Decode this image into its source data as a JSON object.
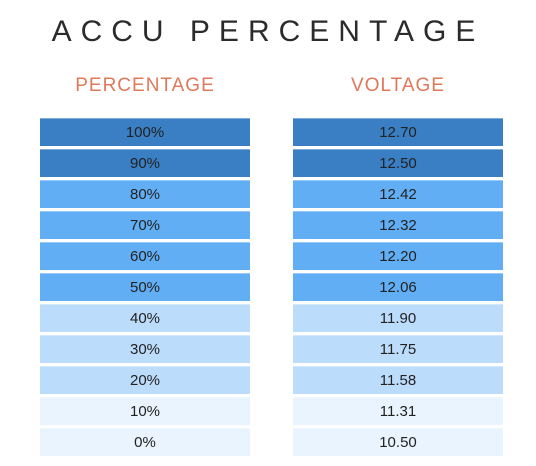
{
  "title": "ACCU PERCENTAGE",
  "colors": {
    "title": "#2b2b2b",
    "header": "#e0785a",
    "level_dark": "#3a7fc4",
    "level_medium": "#62aef4",
    "level_light": "#bcdcfb",
    "level_faint": "#e9f4fe"
  },
  "chart_data": {
    "type": "table",
    "title": "ACCU PERCENTAGE",
    "columns": [
      "PERCENTAGE",
      "VOLTAGE"
    ],
    "rows": [
      {
        "percentage": "100%",
        "voltage": "12.70",
        "shade": "dark"
      },
      {
        "percentage": "90%",
        "voltage": "12.50",
        "shade": "dark"
      },
      {
        "percentage": "80%",
        "voltage": "12.42",
        "shade": "medium"
      },
      {
        "percentage": "70%",
        "voltage": "12.32",
        "shade": "medium"
      },
      {
        "percentage": "60%",
        "voltage": "12.20",
        "shade": "medium"
      },
      {
        "percentage": "50%",
        "voltage": "12.06",
        "shade": "medium"
      },
      {
        "percentage": "40%",
        "voltage": "11.90",
        "shade": "light"
      },
      {
        "percentage": "30%",
        "voltage": "11.75",
        "shade": "light"
      },
      {
        "percentage": "20%",
        "voltage": "11.58",
        "shade": "light"
      },
      {
        "percentage": "10%",
        "voltage": "11.31",
        "shade": "faint"
      },
      {
        "percentage": "0%",
        "voltage": "10.50",
        "shade": "faint"
      }
    ]
  }
}
